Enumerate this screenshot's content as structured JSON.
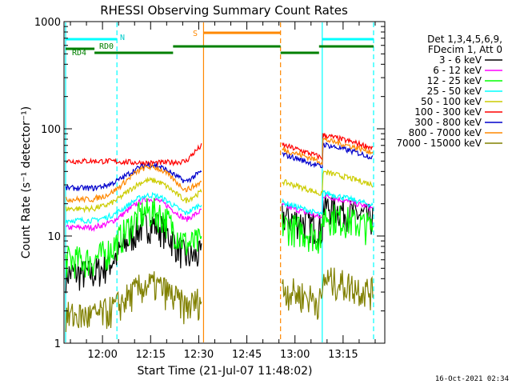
{
  "chart_data": {
    "type": "line",
    "title": "RHESSI Observing Summary Count Rates",
    "xlabel": "Start Time (21-Jul-07 11:48:02)",
    "ylabel": "Count Rate (s⁻¹ detector⁻¹)",
    "y_scale": "log",
    "ylim": [
      1,
      1000
    ],
    "xlim_minutes_after_start": [
      0,
      100
    ],
    "x_ticks": [
      "12:00",
      "12:15",
      "12:30",
      "12:45",
      "13:00",
      "13:15"
    ],
    "x_tick_minutes": [
      12,
      27,
      42,
      57,
      72,
      87
    ],
    "y_ticks": [
      "1",
      "10",
      "100",
      "1000"
    ],
    "y_tick_values": [
      1,
      10,
      100,
      1000
    ],
    "legend_header": [
      "Det 1,3,4,5,6,9,",
      "FDecim 1, Att 0"
    ],
    "legend_position": "right",
    "series": [
      {
        "name": "3 - 6 keV",
        "color": "#000000",
        "before": 4.5,
        "peak": 13,
        "after": 12,
        "gap_level": 3.5
      },
      {
        "name": "6 - 12 keV",
        "color": "#ff00ff",
        "before": 12,
        "peak": 22,
        "after": 15,
        "gap_level": 10
      },
      {
        "name": "12 - 25 keV",
        "color": "#00ff00",
        "before": 6,
        "peak": 17,
        "after": 10,
        "gap_level": 5.5
      },
      {
        "name": "25 - 50 keV",
        "color": "#00ffff",
        "before": 14,
        "peak": 24,
        "after": 16,
        "gap_level": 13
      },
      {
        "name": "50 - 100 keV",
        "color": "#cccc00",
        "before": 18,
        "peak": 33,
        "after": 25,
        "gap_level": 17
      },
      {
        "name": "100 - 300 keV",
        "color": "#ff0000",
        "before": 50,
        "peak": 48,
        "after": 55,
        "gap_level": 48
      },
      {
        "name": "300 - 800 keV",
        "color": "#0000cc",
        "before": 28,
        "peak": 46,
        "after": 45,
        "gap_level": 31
      },
      {
        "name": "800 - 7000 keV",
        "color": "#ff8800",
        "before": 22,
        "peak": 44,
        "after": 50,
        "gap_level": 21
      },
      {
        "name": "7000 - 15000 keV",
        "color": "#808000",
        "before": 1.8,
        "peak": 3.5,
        "after": 2.5,
        "gap_level": 2
      }
    ],
    "markers": {
      "N": "N",
      "RD0": "RD0",
      "RD4": "RD4",
      "S": "S"
    },
    "vertical_lines": [
      {
        "minute": 0.5,
        "color": "#00ffff",
        "style": "solid"
      },
      {
        "minute": 16.5,
        "color": "#00ffff",
        "style": "dashed"
      },
      {
        "minute": 43.5,
        "color": "#ff8800",
        "style": "solid"
      },
      {
        "minute": 67.5,
        "color": "#ff8800",
        "style": "dashed"
      },
      {
        "minute": 80.5,
        "color": "#00ffff",
        "style": "solid"
      },
      {
        "minute": 96.5,
        "color": "#00ffff",
        "style": "dashed"
      }
    ],
    "footer_timestamp": "16-Oct-2021 02:34"
  }
}
